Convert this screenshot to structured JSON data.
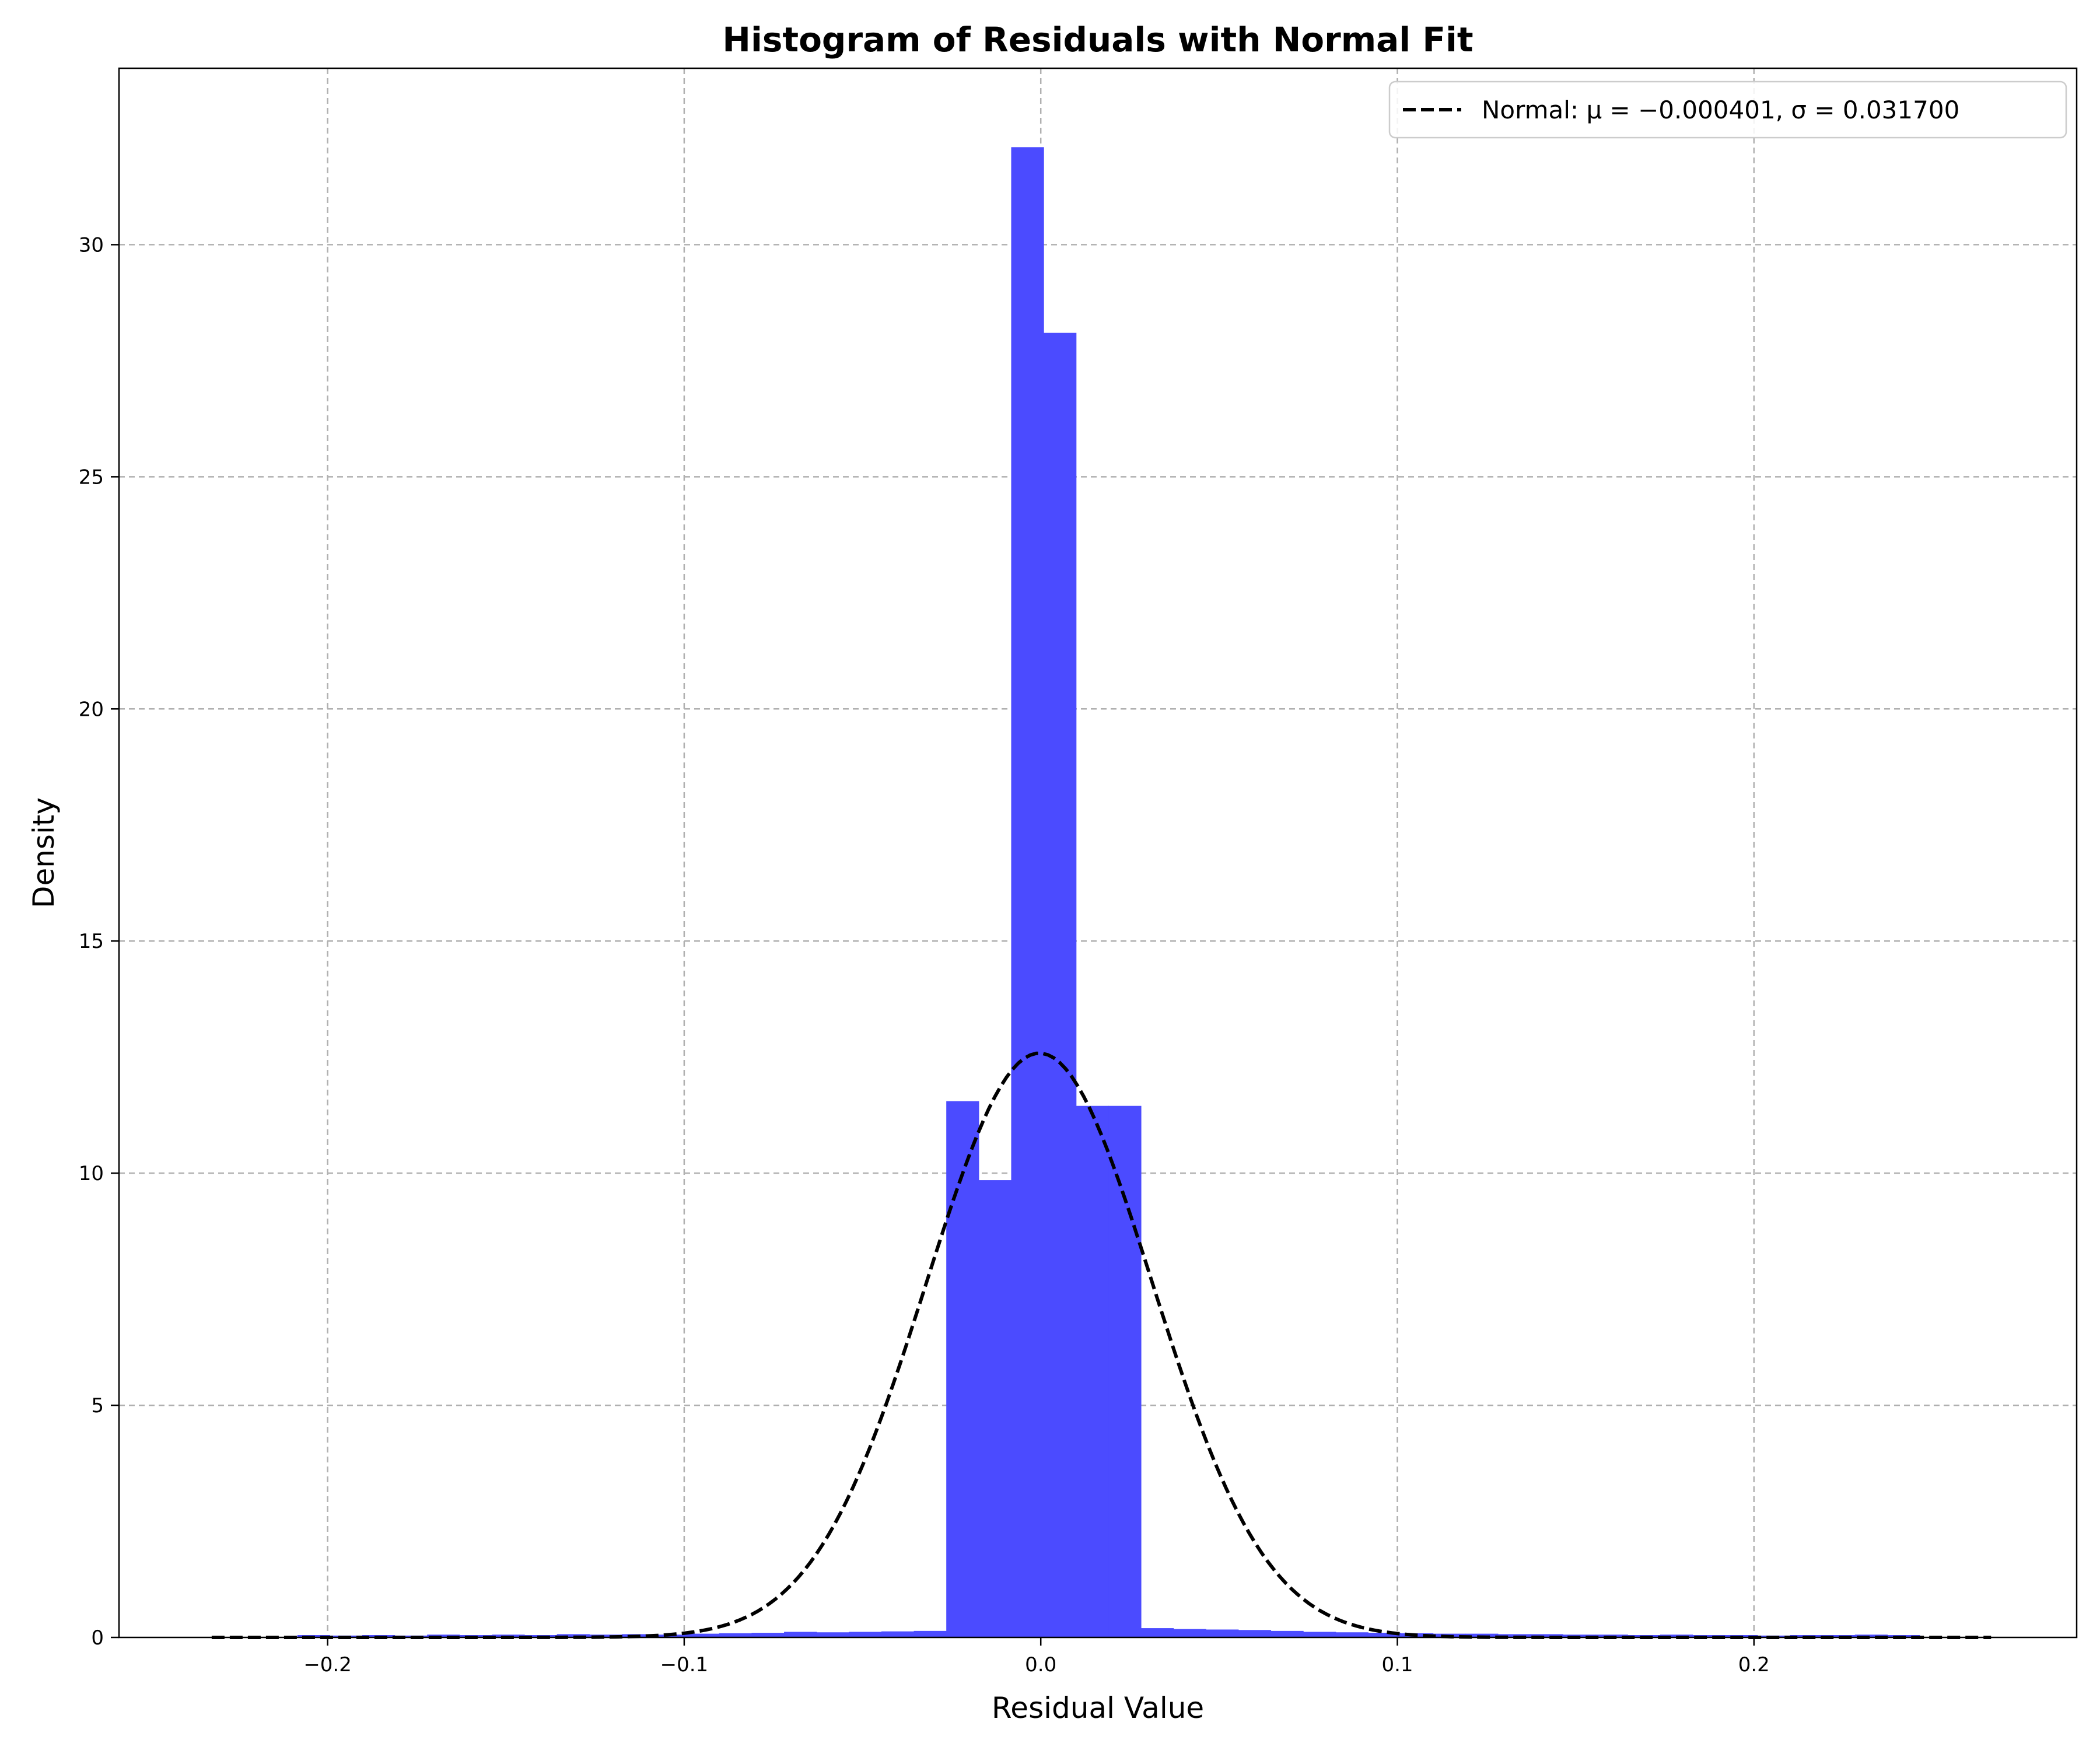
{
  "chart_data": {
    "type": "bar",
    "title": "Histogram of Residuals with Normal Fit",
    "xlabel": "Residual Value",
    "ylabel": "Density",
    "xlim": [
      -0.2585,
      0.2905
    ],
    "ylim": [
      0,
      33.8
    ],
    "grid": true,
    "legend_position": "top-right",
    "x_ticks": [
      -0.2,
      -0.1,
      0.0,
      0.1,
      0.2
    ],
    "x_tick_labels": [
      "−0.2",
      "−0.1",
      "0.0",
      "0.1",
      "0.2"
    ],
    "y_ticks": [
      0,
      5,
      10,
      15,
      20,
      25,
      30
    ],
    "y_tick_labels": [
      "0",
      "5",
      "10",
      "15",
      "20",
      "25",
      "30"
    ],
    "bar_color": "#4b4bff",
    "curve_color": "#000000",
    "histogram": {
      "name": "Residuals",
      "bin_edges": [
        -0.2085,
        -0.1994,
        -0.1903,
        -0.1812,
        -0.1721,
        -0.163,
        -0.1539,
        -0.1448,
        -0.1357,
        -0.1266,
        -0.1175,
        -0.1084,
        -0.0993,
        -0.0902,
        -0.0811,
        -0.072,
        -0.0629,
        -0.0538,
        -0.0447,
        -0.0356,
        -0.0265,
        -0.0174,
        -0.0083,
        0.0008,
        0.0099,
        0.019,
        0.0281,
        0.0372,
        0.0463,
        0.0554,
        0.0645,
        0.0736,
        0.0827,
        0.0918,
        0.1009,
        0.11,
        0.1191,
        0.1282,
        0.1373,
        0.1464,
        0.1555,
        0.1646,
        0.1737,
        0.1828,
        0.1919,
        0.201,
        0.2101,
        0.2192,
        0.2283,
        0.2374,
        0.2465
      ],
      "values": [
        0.05,
        0.04,
        0.05,
        0.04,
        0.06,
        0.05,
        0.06,
        0.05,
        0.07,
        0.06,
        0.07,
        0.06,
        0.08,
        0.09,
        0.1,
        0.12,
        0.11,
        0.12,
        0.13,
        0.14,
        11.55,
        9.85,
        32.1,
        28.1,
        11.45,
        11.45,
        0.2,
        0.18,
        0.17,
        0.16,
        0.14,
        0.12,
        0.11,
        0.1,
        0.09,
        0.08,
        0.08,
        0.07,
        0.07,
        0.06,
        0.06,
        0.05,
        0.06,
        0.05,
        0.05,
        0.04,
        0.05,
        0.05,
        0.06,
        0.05
      ]
    },
    "series": [
      {
        "name": "Normal: μ = −0.000401, σ = 0.031700",
        "style": "dashed",
        "mu": -0.000401,
        "sigma": 0.0317,
        "x_range": [
          -0.2325,
          0.2665
        ]
      }
    ]
  }
}
